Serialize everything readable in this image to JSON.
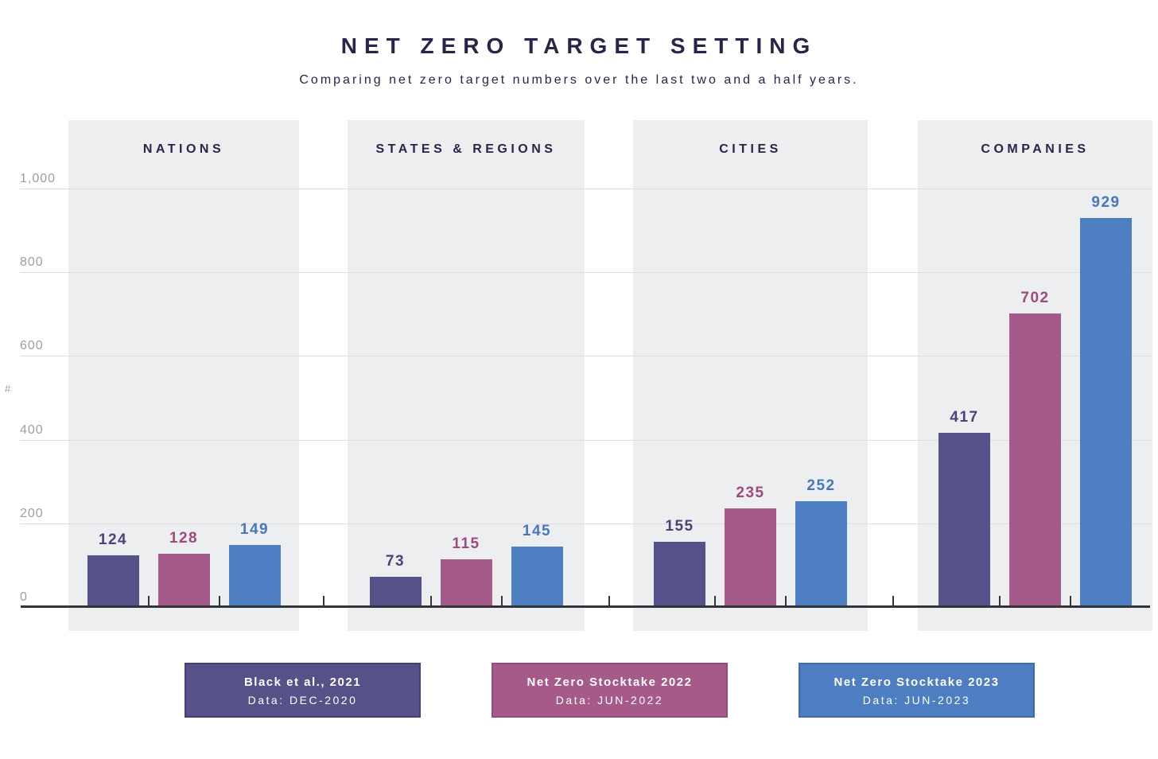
{
  "header": {
    "title": "NET ZERO TARGET SETTING",
    "subtitle": "Comparing net zero target numbers over the last two and a half years."
  },
  "chart_data": {
    "type": "bar",
    "title": "NET ZERO TARGET SETTING",
    "subtitle": "Comparing net zero target numbers over the last two and a half years.",
    "xlabel": "",
    "ylabel": "#",
    "ylim": [
      0,
      1150
    ],
    "grid": true,
    "legend_position": "bottom",
    "categories": [
      "NATIONS",
      "STATES & REGIONS",
      "CITIES",
      "COMPANIES"
    ],
    "y_ticks": [
      {
        "value": 1000,
        "label": "1,000"
      },
      {
        "value": 800,
        "label": "800"
      },
      {
        "value": 600,
        "label": "600"
      },
      {
        "value": 400,
        "label": "400"
      },
      {
        "value": 200,
        "label": "200"
      },
      {
        "value": 0,
        "label": "0"
      }
    ],
    "series": [
      {
        "name": "Black et al., 2021",
        "data_note": "Data: DEC-2020",
        "color": "#57518a",
        "border_color": "#454070",
        "label_color": "#4a4378",
        "values": [
          124,
          73,
          155,
          417
        ]
      },
      {
        "name": "Net Zero Stocktake 2022",
        "data_note": "Data: JUN-2022",
        "color": "#a65a89",
        "border_color": "#934b77",
        "label_color": "#9d4a7e",
        "values": [
          128,
          115,
          235,
          702
        ]
      },
      {
        "name": "Net Zero Stocktake 2023",
        "data_note": "Data: JUN-2023",
        "color": "#4d7ec2",
        "border_color": "#3f6bab",
        "label_color": "#4677bd",
        "values": [
          149,
          145,
          252,
          929
        ]
      }
    ]
  },
  "style_colors": {
    "page_bg": "#ffffff",
    "panel_bg": "#edeef0",
    "gridline": "#dcdee1",
    "axis_line": "#333538",
    "tick_label_color": "#9ba0a6",
    "heading_color": "#2b2348"
  }
}
